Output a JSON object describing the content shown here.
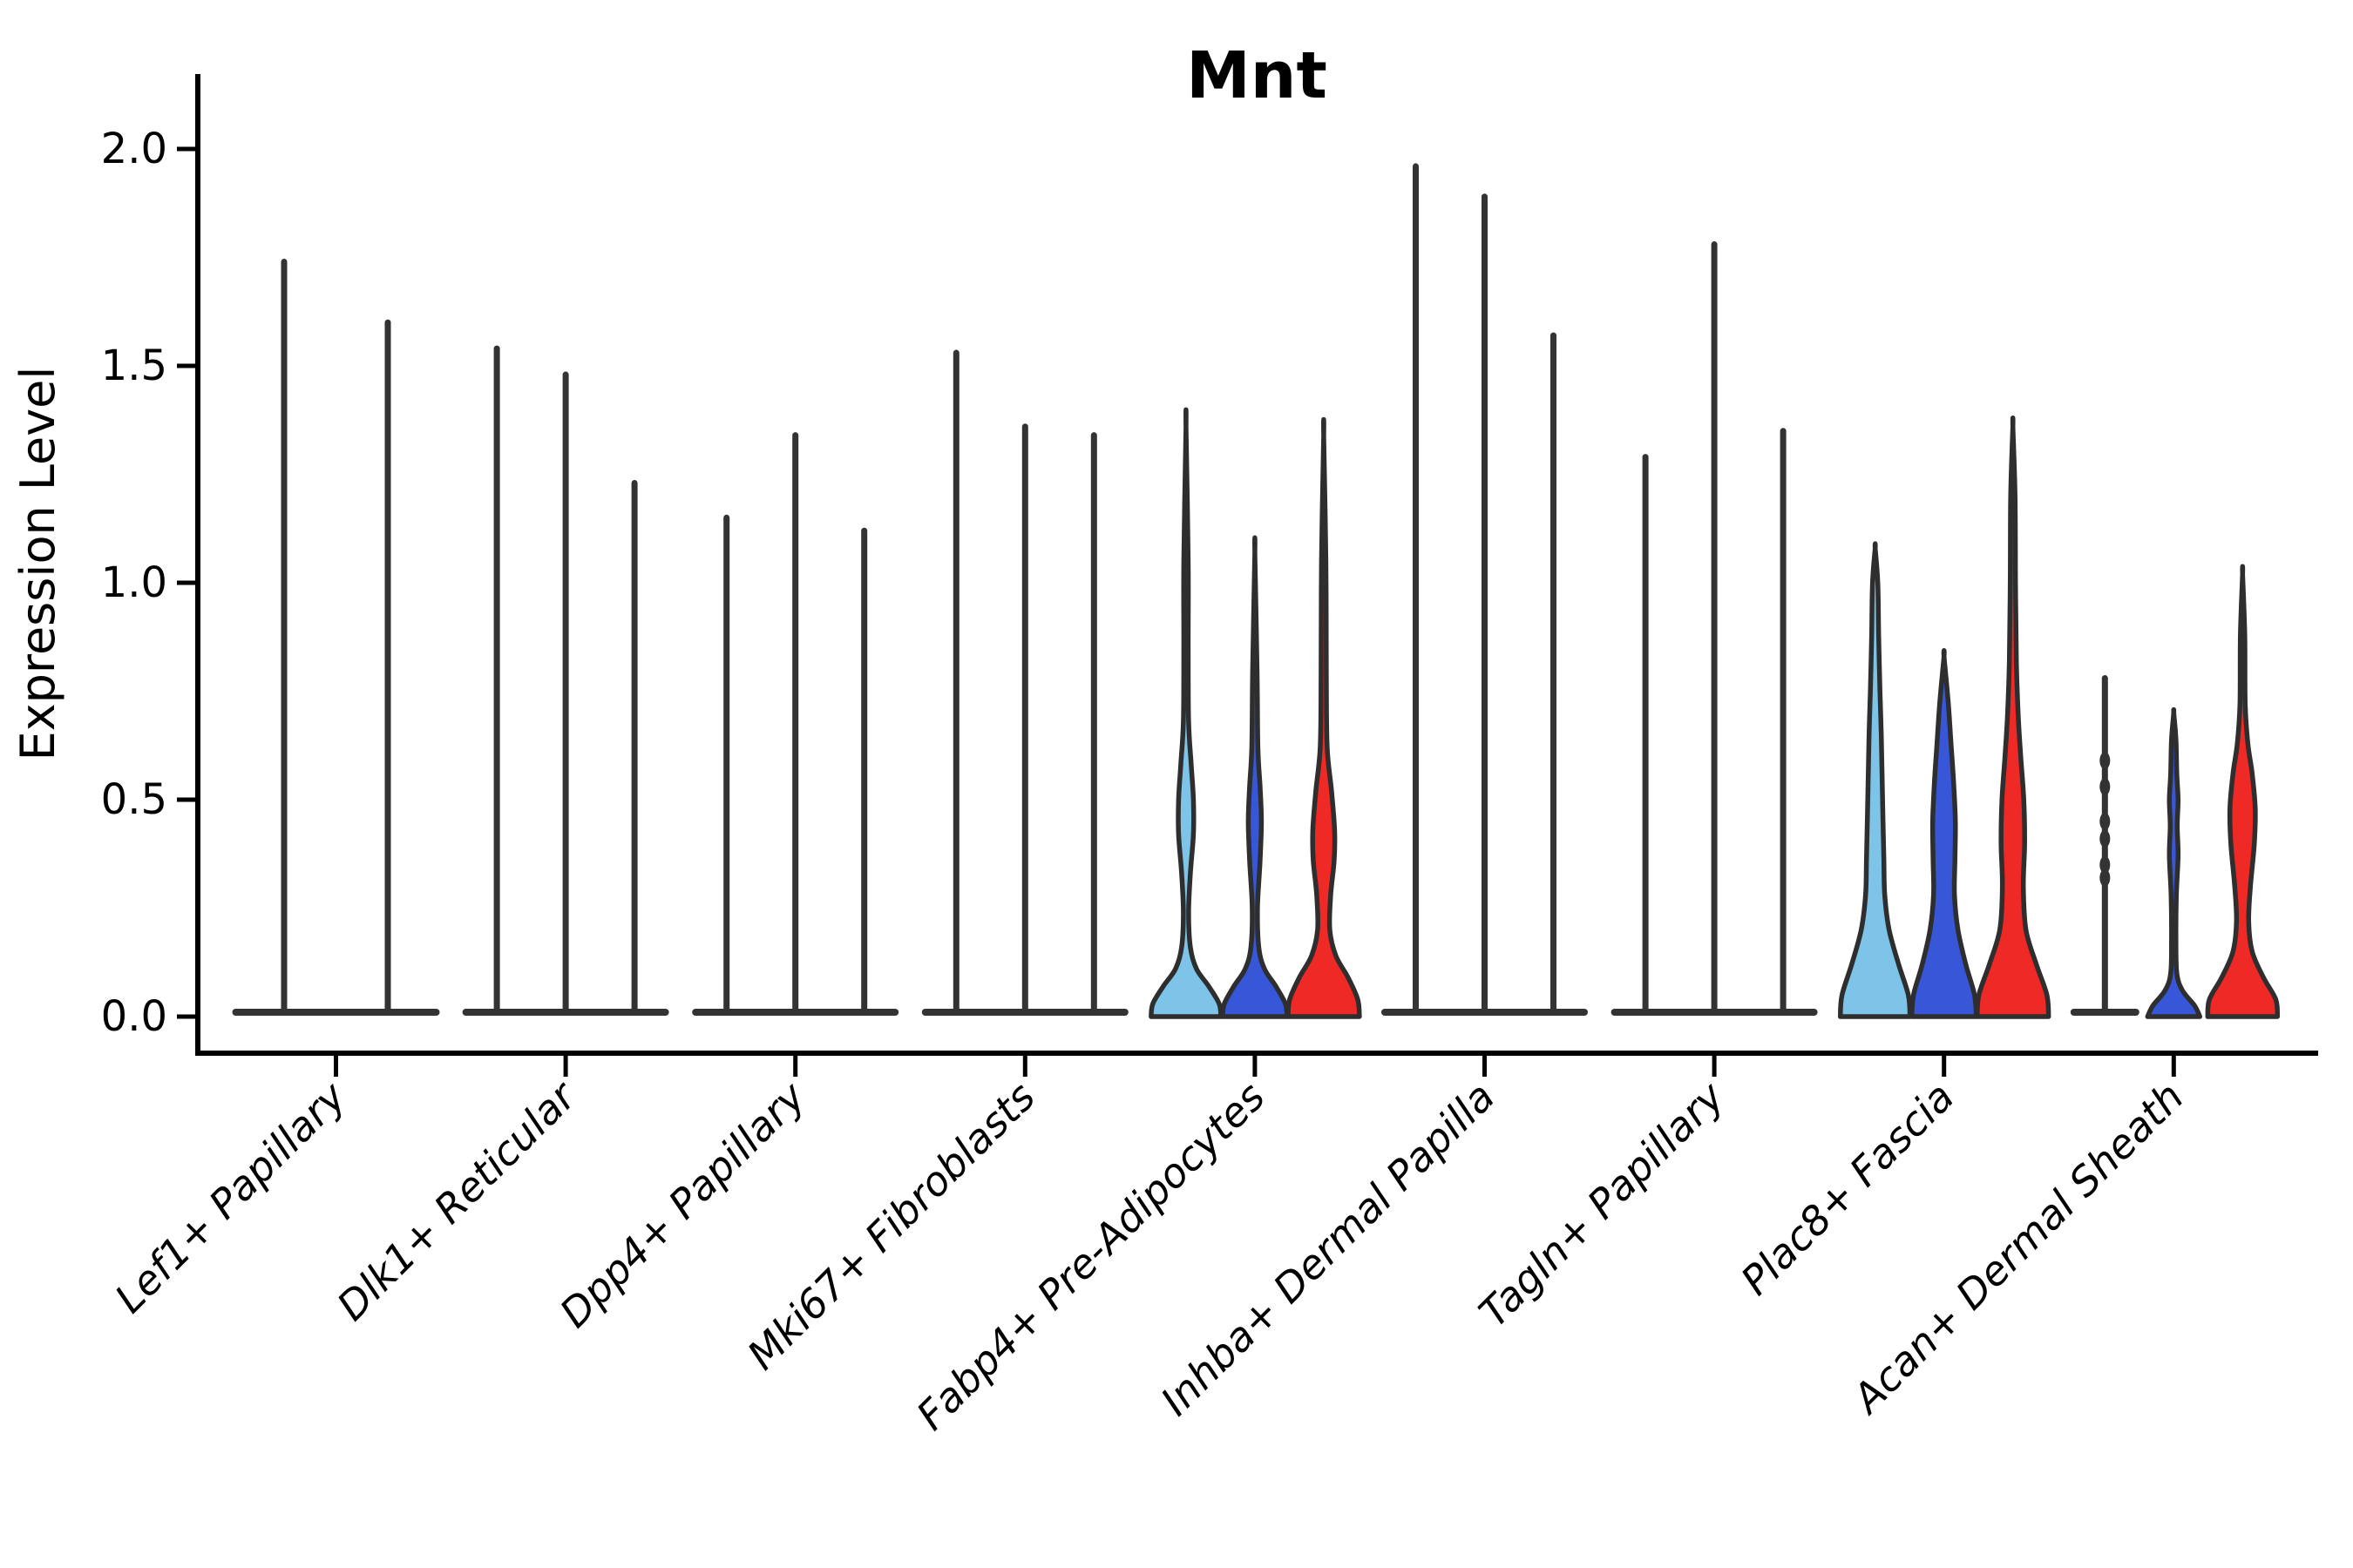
{
  "chart_data": {
    "type": "violin",
    "title": "Mnt",
    "ylabel": "Expression Level",
    "xlabel": "",
    "ylim": [
      0,
      2.17
    ],
    "yticks": [
      0.0,
      0.5,
      1.0,
      1.5,
      2.0
    ],
    "ytick_labels": [
      "0.0",
      "0.5",
      "1.0",
      "1.5",
      "2.0"
    ],
    "grid": false,
    "legend": "none",
    "splits": [
      "light_blue",
      "dark_blue",
      "red"
    ],
    "colors": {
      "light_blue": "#7EC4E8",
      "dark_blue": "#3857D8",
      "red": "#EF2926",
      "stroke": "#2E2E2E",
      "axis": "#000000",
      "title_color": "#000000"
    },
    "categories": [
      "Lef1+ Papillary",
      "Dlk1+ Reticular",
      "Dpp4+ Papillary",
      "Mki67+ Fibroblasts",
      "Fabp4+ Pre-Adipocytes",
      "Inhba+ Dermal Papilla",
      "Tagln+ Papillary",
      "Plac8+ Fascia",
      "Acan+ Dermal Sheath"
    ],
    "groups": [
      {
        "label": "Lef1+ Papillary",
        "violins": [
          {
            "split": null,
            "shape": "spike",
            "max": 1.74
          },
          {
            "split": null,
            "shape": "spike",
            "max": 1.6
          }
        ]
      },
      {
        "label": "Dlk1+ Reticular",
        "violins": [
          {
            "split": "light_blue",
            "shape": "spike",
            "max": 1.54
          },
          {
            "split": "dark_blue",
            "shape": "spike",
            "max": 1.48
          },
          {
            "split": "red",
            "shape": "spike",
            "max": 1.23
          }
        ]
      },
      {
        "label": "Dpp4+ Papillary",
        "violins": [
          {
            "split": "light_blue",
            "shape": "spike",
            "max": 1.15
          },
          {
            "split": "dark_blue",
            "shape": "spike",
            "max": 1.34
          },
          {
            "split": "red",
            "shape": "spike",
            "max": 1.12
          }
        ]
      },
      {
        "label": "Mki67+ Fibroblasts",
        "violins": [
          {
            "split": "light_blue",
            "shape": "spike",
            "max": 1.53
          },
          {
            "split": "dark_blue",
            "shape": "spike",
            "max": 1.36
          },
          {
            "split": "red",
            "shape": "spike",
            "max": 1.34
          }
        ]
      },
      {
        "label": "Fabp4+ Pre-Adipocytes",
        "violins": [
          {
            "split": "light_blue",
            "shape": "density",
            "max": 1.36,
            "profile": [
              [
                0,
                40
              ],
              [
                0.03,
                38
              ],
              [
                0.07,
                26
              ],
              [
                0.11,
                12
              ],
              [
                0.16,
                5
              ],
              [
                0.24,
                3
              ],
              [
                0.33,
                5
              ],
              [
                0.42,
                8.5
              ],
              [
                0.5,
                8.5
              ],
              [
                0.58,
                6
              ],
              [
                0.68,
                3
              ],
              [
                0.85,
                2.5
              ],
              [
                1.05,
                2.5
              ],
              [
                1.36,
                0
              ]
            ]
          },
          {
            "split": "dark_blue",
            "shape": "density",
            "max": 1.07,
            "profile": [
              [
                0,
                37
              ],
              [
                0.03,
                35
              ],
              [
                0.07,
                24
              ],
              [
                0.11,
                11
              ],
              [
                0.16,
                4.5
              ],
              [
                0.25,
                3
              ],
              [
                0.36,
                6
              ],
              [
                0.45,
                7.5
              ],
              [
                0.53,
                6
              ],
              [
                0.62,
                3.5
              ],
              [
                0.8,
                2.5
              ],
              [
                1.07,
                0
              ]
            ]
          },
          {
            "split": "red",
            "shape": "density",
            "max": 1.34,
            "profile": [
              [
                0,
                41
              ],
              [
                0.04,
                39
              ],
              [
                0.09,
                28
              ],
              [
                0.14,
                14
              ],
              [
                0.2,
                7
              ],
              [
                0.28,
                8
              ],
              [
                0.36,
                12
              ],
              [
                0.43,
                12.5
              ],
              [
                0.52,
                9
              ],
              [
                0.62,
                4
              ],
              [
                0.78,
                3
              ],
              [
                1.05,
                2.5
              ],
              [
                1.34,
                0
              ]
            ]
          }
        ]
      },
      {
        "label": "Inhba+ Dermal Papilla",
        "violins": [
          {
            "split": "light_blue",
            "shape": "spike",
            "max": 1.96
          },
          {
            "split": "dark_blue",
            "shape": "spike",
            "max": 1.89
          },
          {
            "split": "red",
            "shape": "spike",
            "max": 1.57
          }
        ]
      },
      {
        "label": "Tagln+ Papillary",
        "violins": [
          {
            "split": "light_blue",
            "shape": "spike",
            "max": 1.29
          },
          {
            "split": "dark_blue",
            "shape": "spike",
            "max": 1.78
          },
          {
            "split": "red",
            "shape": "spike",
            "max": 1.35
          }
        ]
      },
      {
        "label": "Plac8+ Fascia",
        "violins": [
          {
            "split": "light_blue",
            "shape": "density",
            "max": 1.08,
            "profile": [
              [
                0,
                40
              ],
              [
                0.05,
                38
              ],
              [
                0.12,
                27
              ],
              [
                0.2,
                16
              ],
              [
                0.28,
                11
              ],
              [
                0.36,
                10
              ],
              [
                0.45,
                9
              ],
              [
                0.55,
                8
              ],
              [
                0.65,
                7
              ],
              [
                0.75,
                5.5
              ],
              [
                0.88,
                4
              ],
              [
                1.0,
                3
              ],
              [
                1.08,
                0
              ]
            ]
          },
          {
            "split": "dark_blue",
            "shape": "density",
            "max": 0.83,
            "profile": [
              [
                0,
                37
              ],
              [
                0.05,
                35
              ],
              [
                0.12,
                25
              ],
              [
                0.2,
                16
              ],
              [
                0.28,
                12
              ],
              [
                0.36,
                12.5
              ],
              [
                0.45,
                13
              ],
              [
                0.54,
                11
              ],
              [
                0.63,
                8
              ],
              [
                0.72,
                5
              ],
              [
                0.83,
                0
              ]
            ]
          },
          {
            "split": "red",
            "shape": "density",
            "max": 1.36,
            "profile": [
              [
                0,
                41
              ],
              [
                0.05,
                39
              ],
              [
                0.12,
                27
              ],
              [
                0.2,
                15
              ],
              [
                0.3,
                12
              ],
              [
                0.4,
                13.5
              ],
              [
                0.5,
                12.5
              ],
              [
                0.6,
                9
              ],
              [
                0.7,
                6
              ],
              [
                0.82,
                4
              ],
              [
                1.0,
                3
              ],
              [
                1.2,
                2.5
              ],
              [
                1.36,
                0
              ]
            ]
          }
        ]
      },
      {
        "label": "Acan+ Dermal Sheath",
        "violins": [
          {
            "split": "light_blue",
            "shape": "spike",
            "max": 0.78,
            "knots": [
              0.32,
              0.35,
              0.41,
              0.45,
              0.53,
              0.59
            ]
          },
          {
            "split": "dark_blue",
            "shape": "density",
            "max": 0.7,
            "profile": [
              [
                0,
                30
              ],
              [
                0.025,
                24
              ],
              [
                0.06,
                10
              ],
              [
                0.1,
                3.5
              ],
              [
                0.18,
                2.5
              ],
              [
                0.28,
                3
              ],
              [
                0.37,
                5
              ],
              [
                0.44,
                4
              ],
              [
                0.5,
                5
              ],
              [
                0.56,
                3.5
              ],
              [
                0.64,
                2.5
              ],
              [
                0.7,
                0
              ]
            ]
          },
          {
            "split": "red",
            "shape": "density",
            "max": 1.02,
            "profile": [
              [
                0,
                40
              ],
              [
                0.04,
                38
              ],
              [
                0.09,
                24
              ],
              [
                0.15,
                11
              ],
              [
                0.22,
                7
              ],
              [
                0.3,
                9
              ],
              [
                0.4,
                13.5
              ],
              [
                0.48,
                14.5
              ],
              [
                0.56,
                11
              ],
              [
                0.63,
                6
              ],
              [
                0.72,
                3
              ],
              [
                0.88,
                2.5
              ],
              [
                1.02,
                0
              ]
            ]
          }
        ]
      }
    ]
  }
}
